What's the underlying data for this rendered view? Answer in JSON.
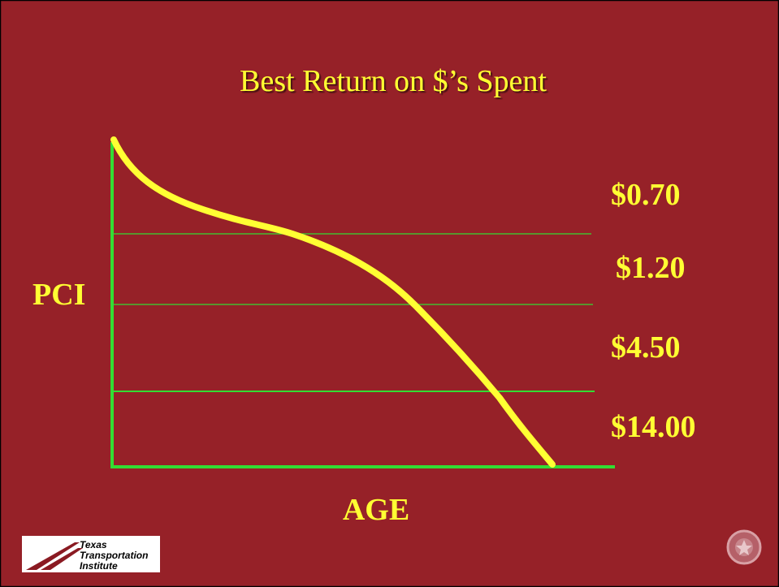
{
  "header": {
    "title": "Best Return on $’s Spent"
  },
  "diagram": {
    "y_label": "PCI",
    "x_label": "AGE",
    "zones": [
      "$0.70",
      "$1.20",
      "$4.50",
      "$14.00"
    ]
  },
  "logo": {
    "lines": [
      "Texas",
      "Transportation",
      "Institute"
    ]
  }
}
